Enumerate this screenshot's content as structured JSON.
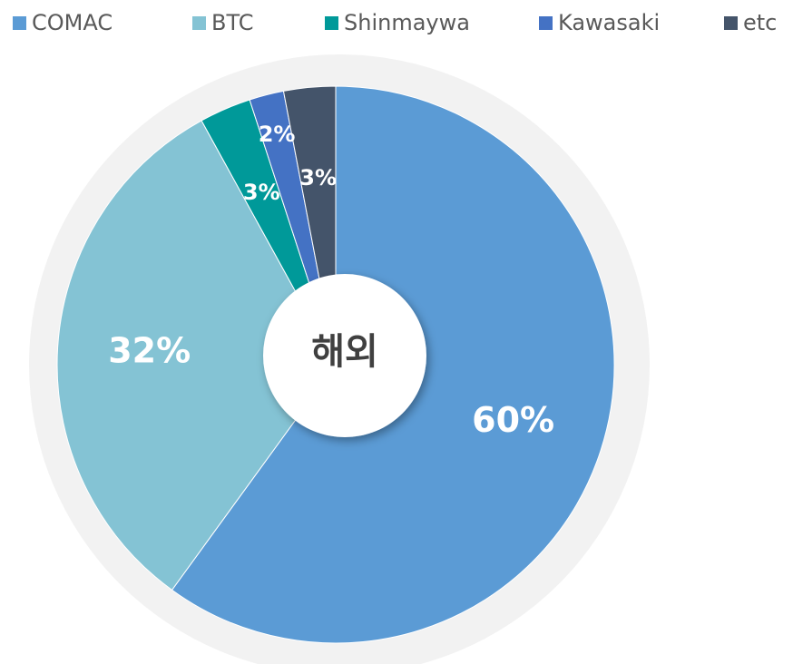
{
  "chart_data": {
    "type": "pie",
    "categories": [
      "COMAC",
      "BTC",
      "Shinmaywa",
      "Kawasaki",
      "etc"
    ],
    "values": [
      60,
      32,
      3,
      2,
      3
    ],
    "value_labels": [
      "60%",
      "32%",
      "3%",
      "2%",
      "3%"
    ],
    "colors": [
      "#5b9bd5",
      "#84c3d4",
      "#009999",
      "#4472c4",
      "#44546a"
    ],
    "center_label": "해외",
    "legend": "top"
  }
}
